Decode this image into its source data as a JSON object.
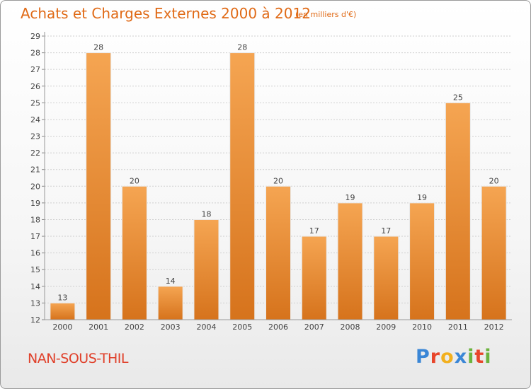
{
  "header": {
    "title": "Achats et Charges Externes 2000 à 2012",
    "unit": "(en milliers d'€)"
  },
  "footer": {
    "commune": "NAN-SOUS-THIL",
    "logo": "Proxiti"
  },
  "colors": {
    "bar_top": "#f5a552",
    "bar_bottom": "#d6731c",
    "title": "#e06a16",
    "commune": "#e0402a",
    "logo_letters": [
      "#3a86d6",
      "#e8452a",
      "#f2b01e",
      "#3a86d6",
      "#6cb33e",
      "#e8452a",
      "#6cb33e"
    ]
  },
  "chart_data": {
    "type": "bar",
    "categories": [
      "2000",
      "2001",
      "2002",
      "2003",
      "2004",
      "2005",
      "2006",
      "2007",
      "2008",
      "2009",
      "2010",
      "2011",
      "2012"
    ],
    "values": [
      13,
      28,
      20,
      14,
      18,
      28,
      20,
      17,
      19,
      17,
      19,
      25,
      20
    ],
    "title": "Achats et Charges Externes 2000 à 2012",
    "xlabel": "",
    "ylabel": "",
    "ylim": [
      12,
      29
    ],
    "yticks": [
      "12",
      "13",
      "14",
      "15",
      "16",
      "17",
      "18",
      "19",
      "20",
      "21",
      "22",
      "23",
      "24",
      "25",
      "26",
      "27",
      "28",
      "29"
    ],
    "grid": true,
    "legend": "none"
  }
}
